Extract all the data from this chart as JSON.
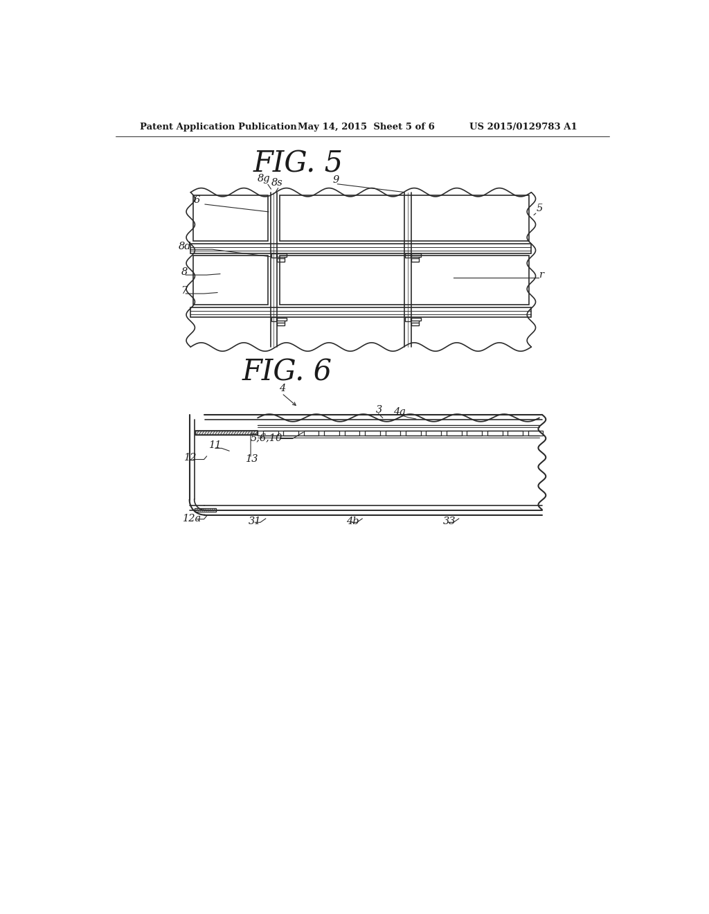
{
  "bg_color": "#ffffff",
  "header_left": "Patent Application Publication",
  "header_center": "May 14, 2015  Sheet 5 of 6",
  "header_right": "US 2015/0129783 A1",
  "fig5_title": "FIG. 5",
  "fig6_title": "FIG. 6",
  "line_color": "#2a2a2a",
  "text_color": "#1a1a1a"
}
